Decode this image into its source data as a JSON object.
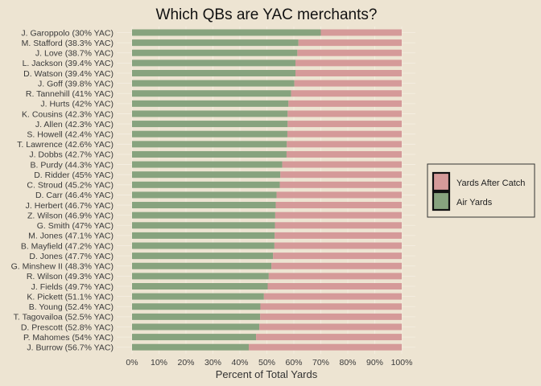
{
  "chart_data": {
    "type": "bar",
    "orientation": "horizontal",
    "stacked": true,
    "title": "Which QBs are YAC merchants?",
    "xlabel": "Percent of Total Yards",
    "ylabel": "",
    "xlim": [
      0,
      100
    ],
    "x_ticks": [
      "0%",
      "10%",
      "20%",
      "30%",
      "40%",
      "50%",
      "60%",
      "70%",
      "80%",
      "90%",
      "100%"
    ],
    "grid": true,
    "legend_position": "right",
    "categories": [
      "J. Garoppolo (30% YAC)",
      "M. Stafford (38.3% YAC)",
      "J. Love (38.7% YAC)",
      "L. Jackson (39.4% YAC)",
      "D. Watson (39.4% YAC)",
      "J. Goff (39.8% YAC)",
      "R. Tannehill (41% YAC)",
      "J. Hurts (42% YAC)",
      "K. Cousins (42.3% YAC)",
      "J. Allen (42.3% YAC)",
      "S. Howell (42.4% YAC)",
      "T. Lawrence (42.6% YAC)",
      "J. Dobbs (42.7% YAC)",
      "B. Purdy (44.3% YAC)",
      "D. Ridder (45% YAC)",
      "C. Stroud (45.2% YAC)",
      "D. Carr (46.4% YAC)",
      "J. Herbert (46.7% YAC)",
      "Z. Wilson (46.9% YAC)",
      "G. Smith (47% YAC)",
      "M. Jones (47.1% YAC)",
      "B. Mayfield (47.2% YAC)",
      "D. Jones (47.7% YAC)",
      "G. Minshew II (48.3% YAC)",
      "R. Wilson (49.3% YAC)",
      "J. Fields (49.7% YAC)",
      "K. Pickett (51.1% YAC)",
      "B. Young (52.4% YAC)",
      "T. Tagovailoa (52.5% YAC)",
      "D. Prescott (52.8% YAC)",
      "P. Mahomes (54% YAC)",
      "J. Burrow (56.7% YAC)"
    ],
    "series": [
      {
        "name": "Air Yards",
        "color": "#87a37e",
        "values": [
          70,
          61.7,
          61.3,
          60.6,
          60.6,
          60.2,
          59,
          58,
          57.7,
          57.7,
          57.6,
          57.4,
          57.3,
          55.7,
          55,
          54.8,
          53.6,
          53.3,
          53.1,
          53,
          52.9,
          52.8,
          52.3,
          51.7,
          50.7,
          50.3,
          48.9,
          47.6,
          47.5,
          47.2,
          46,
          43.3
        ]
      },
      {
        "name": "Yards After Catch",
        "color": "#d59a99",
        "values": [
          30,
          38.3,
          38.7,
          39.4,
          39.4,
          39.8,
          41,
          42,
          42.3,
          42.3,
          42.4,
          42.6,
          42.7,
          44.3,
          45,
          45.2,
          46.4,
          46.7,
          46.9,
          47,
          47.1,
          47.2,
          47.7,
          48.3,
          49.3,
          49.7,
          51.1,
          52.4,
          52.5,
          52.8,
          54,
          56.7
        ]
      }
    ],
    "legend_order": [
      "Yards After Catch",
      "Air Yards"
    ]
  }
}
